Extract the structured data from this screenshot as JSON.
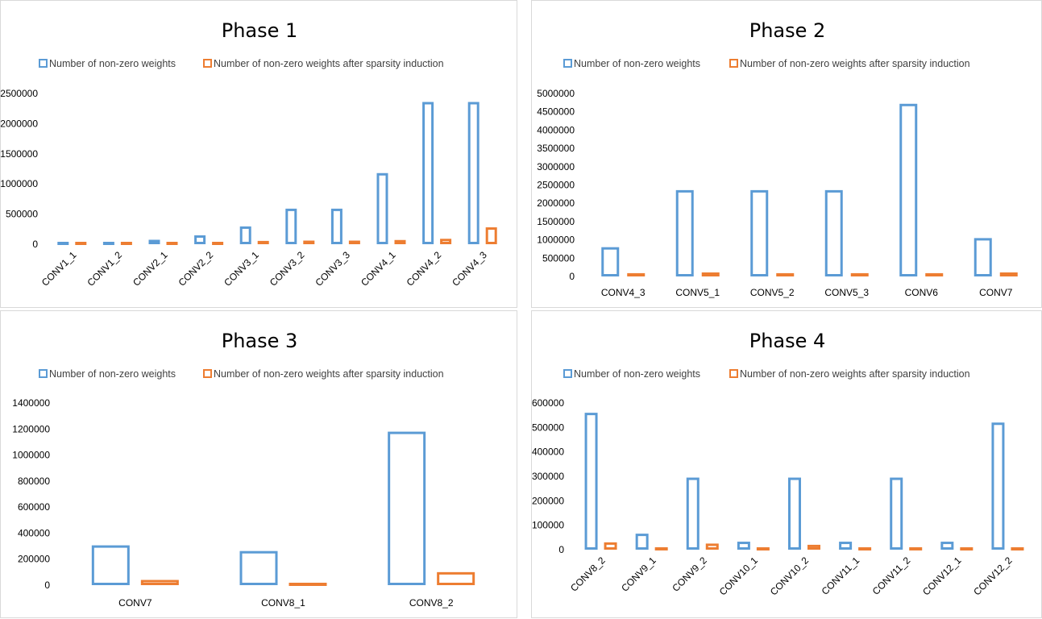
{
  "chart_data": [
    {
      "type": "bar",
      "title": "Phase 1",
      "categories": [
        "CONV1_1",
        "CONV1_2",
        "CONV2_1",
        "CONV2_2",
        "CONV3_1",
        "CONV3_2",
        "CONV3_3",
        "CONV4_1",
        "CONV4_2",
        "CONV4_3"
      ],
      "series": [
        {
          "name": "Number of non-zero weights",
          "values": [
            1728,
            36864,
            73728,
            147456,
            294912,
            589824,
            589824,
            1179648,
            2359296,
            2359296
          ]
        },
        {
          "name": "Number of non-zero weights after sparsity induction",
          "values": [
            1500,
            15000,
            20000,
            40000,
            55000,
            60000,
            60000,
            70000,
            90000,
            280000
          ]
        }
      ],
      "ylim": [
        0,
        2500000
      ],
      "yticks": [
        0,
        500000,
        1000000,
        1500000,
        2000000,
        2500000
      ],
      "xlabel_rotation": true,
      "legend": "top",
      "grid": false,
      "colors": [
        "#5b9bd5",
        "#ed7d31"
      ]
    },
    {
      "type": "bar",
      "title": "Phase 2",
      "categories": [
        "CONV4_3",
        "CONV5_1",
        "CONV5_2",
        "CONV5_3",
        "CONV6",
        "CONV7"
      ],
      "series": [
        {
          "name": "Number of non-zero weights",
          "values": [
            800000,
            2359296,
            2359296,
            2359296,
            4718592,
            1048576
          ]
        },
        {
          "name": "Number of non-zero weights after sparsity induction",
          "values": [
            90000,
            110000,
            90000,
            90000,
            90000,
            110000
          ]
        }
      ],
      "ylim": [
        0,
        5000000
      ],
      "yticks": [
        0,
        500000,
        1000000,
        1500000,
        2000000,
        2500000,
        3000000,
        3500000,
        4000000,
        4500000,
        5000000
      ],
      "xlabel_rotation": false,
      "legend": "top",
      "grid": false,
      "colors": [
        "#5b9bd5",
        "#ed7d31"
      ]
    },
    {
      "type": "bar",
      "title": "Phase 3",
      "categories": [
        "CONV7",
        "CONV8_1",
        "CONV8_2"
      ],
      "series": [
        {
          "name": "Number of non-zero weights",
          "values": [
            306000,
            262144,
            1179648
          ]
        },
        {
          "name": "Number of non-zero weights after sparsity induction",
          "values": [
            40000,
            15000,
            100000
          ]
        }
      ],
      "ylim": [
        0,
        1400000
      ],
      "yticks": [
        0,
        200000,
        400000,
        600000,
        800000,
        1000000,
        1200000,
        1400000
      ],
      "xlabel_rotation": false,
      "legend": "top",
      "grid": false,
      "colors": [
        "#5b9bd5",
        "#ed7d31"
      ]
    },
    {
      "type": "bar",
      "title": "Phase 4",
      "categories": [
        "CONV8_2",
        "CONV9_1",
        "CONV9_2",
        "CONV10_1",
        "CONV10_2",
        "CONV11_1",
        "CONV11_2",
        "CONV12_1",
        "CONV12_2"
      ],
      "series": [
        {
          "name": "Number of non-zero weights",
          "values": [
            560000,
            65536,
            294912,
            32768,
            294912,
            32768,
            294912,
            32768,
            520000
          ]
        },
        {
          "name": "Number of non-zero weights after sparsity induction",
          "values": [
            30000,
            10000,
            25000,
            8000,
            20000,
            5000,
            10000,
            5000,
            5000
          ]
        }
      ],
      "ylim": [
        0,
        600000
      ],
      "yticks": [
        0,
        100000,
        200000,
        300000,
        400000,
        500000,
        600000
      ],
      "xlabel_rotation": true,
      "legend": "top",
      "grid": false,
      "colors": [
        "#5b9bd5",
        "#ed7d31"
      ]
    }
  ]
}
